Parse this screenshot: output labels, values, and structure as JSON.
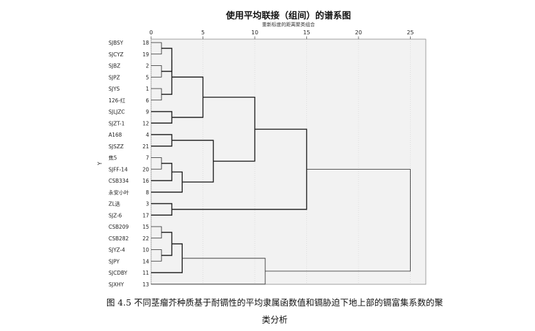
{
  "figure": {
    "caption_line1": "图 4.5 不同茎瘤芥种质基于耐镉性的平均隶属函数值和镉胁迫下地上部的镉富集系数的聚",
    "caption_line2": "类分析"
  },
  "chart_data": {
    "type": "dendrogram",
    "title": "使用平均联接（组间）的谱系图",
    "subtitle": "重新标度的距离聚类组合",
    "ylabel": "Y",
    "x_ticks": [
      0,
      5,
      10,
      15,
      20,
      25
    ],
    "xlim": [
      0,
      27
    ],
    "leaves": [
      {
        "label": "SJBSY",
        "id": "18"
      },
      {
        "label": "SJCYZ",
        "id": "19"
      },
      {
        "label": "SJBZ",
        "id": "2"
      },
      {
        "label": "SJPZ",
        "id": "5"
      },
      {
        "label": "SJYS",
        "id": "1"
      },
      {
        "label": "126-红",
        "id": "6"
      },
      {
        "label": "SJLJZC",
        "id": "9"
      },
      {
        "label": "SJZT-1",
        "id": "12"
      },
      {
        "label": "A168",
        "id": "4"
      },
      {
        "label": "SJSZZ",
        "id": "21"
      },
      {
        "label": "焦5",
        "id": "7"
      },
      {
        "label": "SJFF-14",
        "id": "20"
      },
      {
        "label": "CSB334",
        "id": "16"
      },
      {
        "label": "永安小叶",
        "id": "8"
      },
      {
        "label": "ZL选",
        "id": "3"
      },
      {
        "label": "SJZ-6",
        "id": "17"
      },
      {
        "label": "CSB209",
        "id": "15"
      },
      {
        "label": "CSB282",
        "id": "22"
      },
      {
        "label": "SJYZ-4",
        "id": "10"
      },
      {
        "label": "SJPY",
        "id": "14"
      },
      {
        "label": "SJCDBY",
        "id": "11"
      },
      {
        "label": "SJXHY",
        "id": "13"
      }
    ],
    "merges": [
      {
        "a": 0,
        "b": 1,
        "height": 1.0
      },
      {
        "a": 2,
        "b": 3,
        "height": 1.0
      },
      {
        "a": 4,
        "b": 5,
        "height": 1.0
      },
      {
        "a": 22,
        "b": 23,
        "height": 2.0
      },
      {
        "a": 25,
        "b": 24,
        "height": 2.0
      },
      {
        "a": 6,
        "b": 7,
        "height": 2.0
      },
      {
        "a": 26,
        "b": 27,
        "height": 5.0
      },
      {
        "a": 8,
        "b": 9,
        "height": 2.0
      },
      {
        "a": 10,
        "b": 11,
        "height": 1.0
      },
      {
        "a": 30,
        "b": 12,
        "height": 2.0
      },
      {
        "a": 31,
        "b": 13,
        "height": 3.0
      },
      {
        "a": 29,
        "b": 32,
        "height": 6.0
      },
      {
        "a": 28,
        "b": 33,
        "height": 10.0
      },
      {
        "a": 14,
        "b": 15,
        "height": 2.0
      },
      {
        "a": 34,
        "b": 35,
        "height": 15.0
      },
      {
        "a": 16,
        "b": 17,
        "height": 1.0
      },
      {
        "a": 18,
        "b": 19,
        "height": 1.0
      },
      {
        "a": 37,
        "b": 38,
        "height": 2.0
      },
      {
        "a": 39,
        "b": 20,
        "height": 3.0
      },
      {
        "a": 40,
        "b": 21,
        "height": 11.0
      },
      {
        "a": 36,
        "b": 41,
        "height": 25.0
      }
    ]
  }
}
